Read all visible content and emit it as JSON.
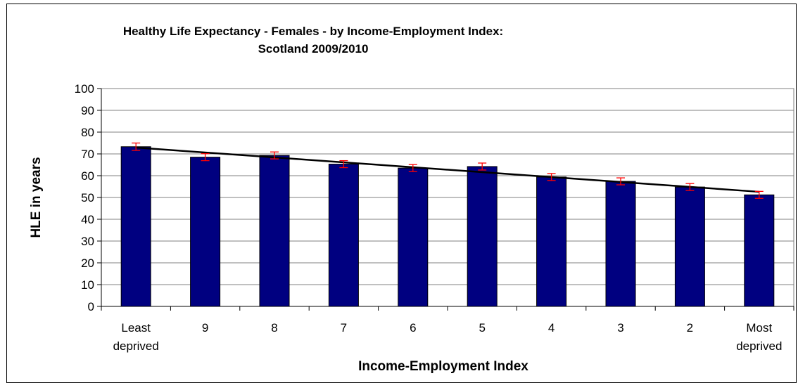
{
  "chart_data": {
    "type": "bar",
    "title_line1": "Healthy Life Expectancy - Females - by Income-Employment Index:",
    "title_line2": "Scotland 2009/2010",
    "xlabel": "Income-Employment Index",
    "ylabel": "HLE in years",
    "ylim": [
      0,
      100
    ],
    "yticks": [
      "0",
      "10",
      "20",
      "30",
      "40",
      "50",
      "60",
      "70",
      "80",
      "90",
      "100"
    ],
    "grid": true,
    "categories": [
      [
        "Least",
        "deprived"
      ],
      [
        "9"
      ],
      [
        "8"
      ],
      [
        "7"
      ],
      [
        "6"
      ],
      [
        "5"
      ],
      [
        "4"
      ],
      [
        "3"
      ],
      [
        "2"
      ],
      [
        "Most",
        "deprived"
      ]
    ],
    "values": [
      73.3,
      68.5,
      69.3,
      65.3,
      63.5,
      64.2,
      59.4,
      57.4,
      54.8,
      51.2
    ],
    "error_low": [
      71.6,
      66.9,
      67.7,
      63.7,
      61.9,
      62.6,
      57.8,
      55.8,
      53.2,
      49.6
    ],
    "error_high": [
      75.0,
      70.1,
      70.9,
      66.9,
      65.1,
      65.8,
      61.0,
      59.0,
      56.4,
      52.8
    ],
    "trendline": [
      72.9,
      52.6
    ],
    "bar_color": "#000080",
    "error_color": "#ff0000",
    "trend_color": "#000000"
  }
}
